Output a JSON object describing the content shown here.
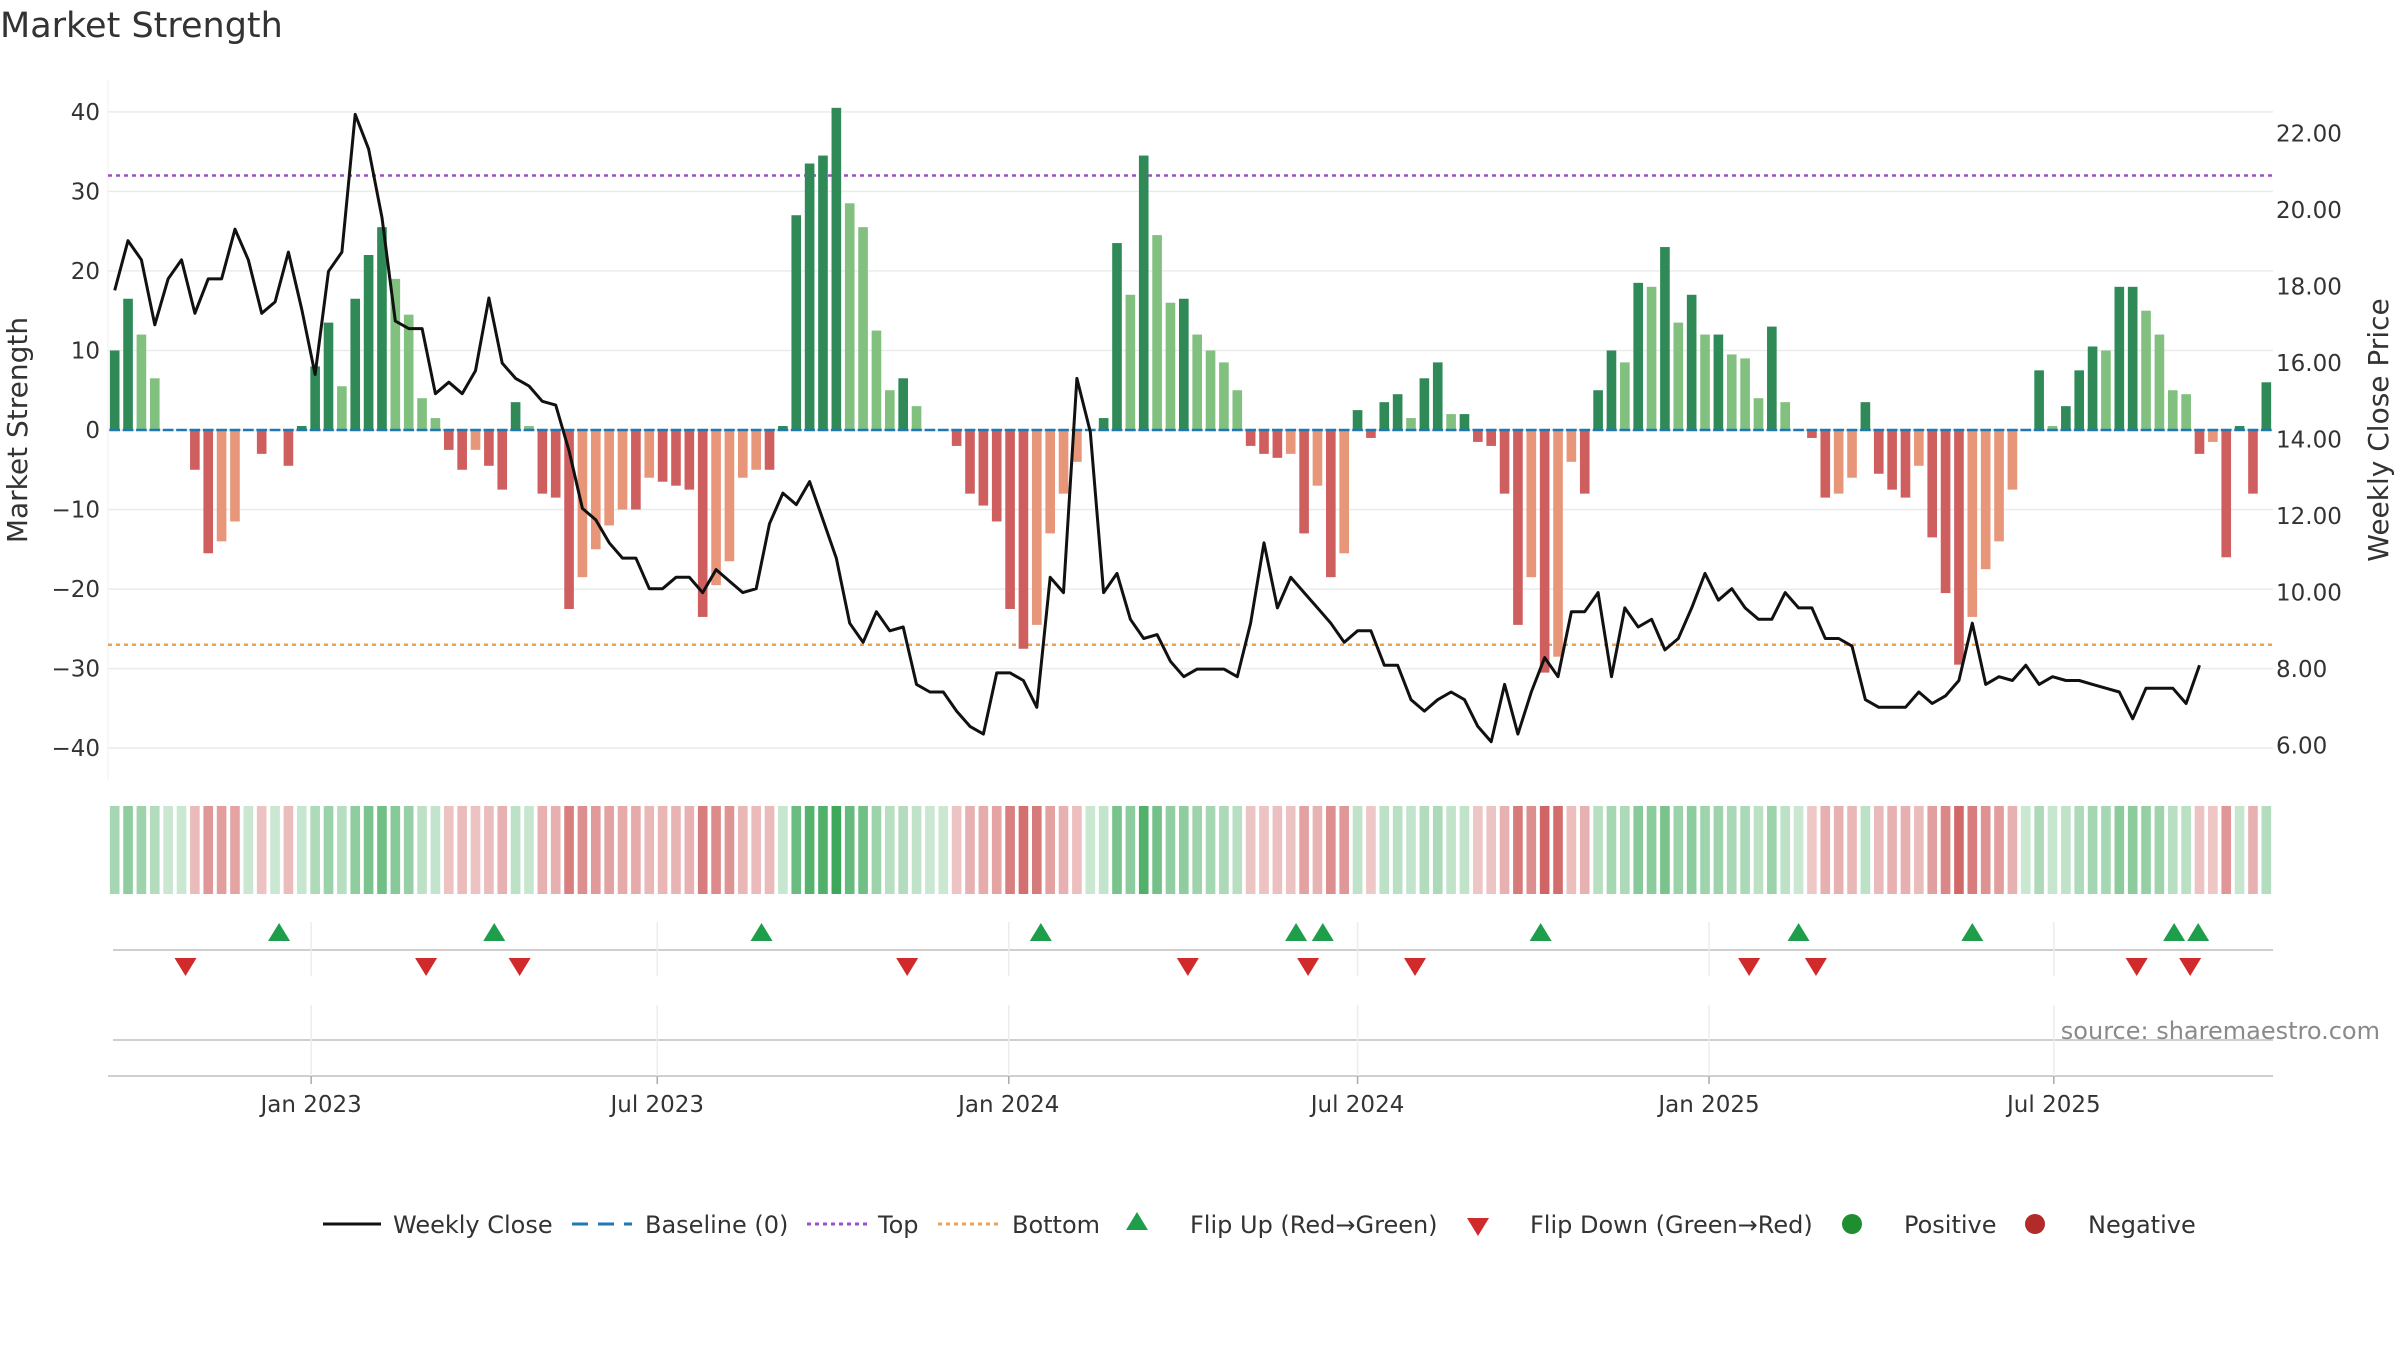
{
  "chart_data": {
    "type": "bar",
    "title": "Market Strength",
    "ylabel_left": "Market Strength",
    "ylabel_right": "Weekly Close Price",
    "source_note": "source: sharemaestro.com",
    "left_axis": {
      "range": [
        -44,
        44
      ],
      "ticks": [
        40,
        30,
        20,
        10,
        0,
        -10,
        -20,
        -30,
        -40
      ],
      "tick_labels": [
        "40",
        "30",
        "20",
        "10",
        "0",
        "−10",
        "−20",
        "−30",
        "−40"
      ]
    },
    "right_axis": {
      "range": [
        5.1,
        23.4
      ],
      "ticks": [
        22,
        20,
        18,
        16,
        14,
        12,
        10,
        8,
        6
      ],
      "tick_labels": [
        "22.00",
        "20.00",
        "18.00",
        "16.00",
        "14.00",
        "12.00",
        "10.00",
        "8.00",
        "6.00"
      ]
    },
    "x_axis": {
      "start_week": 0,
      "end_week": 157,
      "month_ticks": [
        {
          "label": "Jan 2023",
          "week": 14.7
        },
        {
          "label": "Jul 2023",
          "week": 40.6
        },
        {
          "label": "Jan 2024",
          "week": 66.9
        },
        {
          "label": "Jul 2024",
          "week": 93.0
        },
        {
          "label": "Jan 2025",
          "week": 119.3
        },
        {
          "label": "Jul 2025",
          "week": 145.1
        }
      ]
    },
    "thresholds": {
      "top": 32,
      "bottom": -27
    },
    "strength": [
      10,
      16.5,
      12,
      6.5,
      0,
      0,
      -5,
      -15.5,
      -14,
      -11.5,
      0,
      -3,
      0,
      -4.5,
      0.5,
      8,
      13.5,
      5.5,
      16.5,
      22,
      25.5,
      19,
      14.5,
      4,
      1.5,
      -2.5,
      -5,
      -2.5,
      -4.5,
      -7.5,
      3.5,
      0.5,
      -8,
      -8.5,
      -22.5,
      -18.5,
      -15,
      -12,
      -10,
      -10,
      -6,
      -6.5,
      -7,
      -7.5,
      -23.5,
      -19.5,
      -16.5,
      -6,
      -5,
      -5,
      0.5,
      27,
      33.5,
      34.5,
      40.5,
      28.5,
      25.5,
      12.5,
      5,
      6.5,
      3,
      0,
      0,
      -2,
      -8,
      -9.5,
      -11.5,
      -22.5,
      -27.5,
      -24.5,
      -13,
      -8,
      -4,
      0,
      1.5,
      23.5,
      17,
      34.5,
      24.5,
      16,
      16.5,
      12,
      10,
      8.5,
      5,
      -2,
      -3,
      -3.5,
      -3,
      -13,
      -7,
      -18.5,
      -15.5,
      2.5,
      -1,
      3.5,
      4.5,
      1.5,
      6.5,
      8.5,
      2,
      2,
      -1.5,
      -2,
      -8,
      -24.5,
      -18.5,
      -30.5,
      -28.5,
      -4,
      -8,
      5,
      10,
      8.5,
      18.5,
      18,
      23,
      13.5,
      17,
      12,
      12,
      9.5,
      9,
      4,
      13,
      3.5,
      0,
      -1,
      -8.5,
      -8,
      -6,
      3.5,
      -5.5,
      -7.5,
      -8.5,
      -4.5,
      -13.5,
      -20.5,
      -29.5,
      -23.5,
      -17.5,
      -14,
      -7.5,
      0,
      7.5,
      0.5,
      3,
      7.5,
      10.5,
      10,
      18,
      18,
      15,
      12,
      5,
      4.5,
      -3,
      -1.5,
      -16,
      0.5,
      -8,
      6
    ],
    "weekly_close": [
      17.9,
      19.2,
      18.7,
      17.0,
      18.2,
      18.7,
      17.3,
      18.2,
      18.2,
      19.5,
      18.7,
      17.3,
      17.6,
      18.9,
      17.4,
      15.7,
      18.4,
      18.9,
      22.5,
      21.6,
      19.8,
      17.1,
      16.9,
      16.9,
      15.2,
      15.5,
      15.2,
      15.8,
      17.7,
      16.0,
      15.6,
      15.4,
      15.0,
      14.9,
      13.7,
      12.2,
      11.9,
      11.3,
      10.9,
      10.9,
      10.1,
      10.1,
      10.4,
      10.4,
      10.0,
      10.6,
      10.3,
      10.0,
      10.1,
      11.8,
      12.6,
      12.3,
      12.9,
      11.9,
      10.9,
      9.2,
      8.7,
      9.5,
      9.0,
      9.1,
      7.6,
      7.4,
      7.4,
      6.9,
      6.5,
      6.3,
      7.9,
      7.9,
      7.7,
      7.0,
      10.4,
      10.0,
      15.6,
      14.2,
      10.0,
      10.5,
      9.3,
      8.8,
      8.9,
      8.2,
      7.8,
      8.0,
      8.0,
      8.0,
      7.8,
      9.2,
      11.3,
      9.6,
      10.4,
      10.0,
      9.6,
      9.2,
      8.7,
      9.0,
      9.0,
      8.1,
      8.1,
      7.2,
      6.9,
      7.2,
      7.4,
      7.2,
      6.5,
      6.1,
      7.6,
      6.3,
      7.4,
      8.3,
      7.8,
      9.5,
      9.5,
      10.0,
      7.8,
      9.6,
      9.1,
      9.3,
      8.5,
      8.8,
      9.6,
      10.5,
      9.8,
      10.1,
      9.6,
      9.3,
      9.3,
      10.0,
      9.6,
      9.6,
      8.8,
      8.8,
      8.6,
      7.2,
      7.0,
      7.0,
      7.0,
      7.4,
      7.1,
      7.3,
      7.7,
      9.2,
      7.6,
      7.8,
      7.7,
      8.1,
      7.6,
      7.8,
      7.7,
      7.7,
      7.6,
      7.5,
      7.4,
      6.7,
      7.5,
      7.5,
      7.5,
      7.1,
      8.1
    ],
    "flip_up_weeks": [
      12.3,
      28.4,
      48.4,
      69.3,
      88.4,
      90.4,
      106.7,
      126.0,
      139.0,
      154.1,
      155.9
    ],
    "flip_down_weeks": [
      5.3,
      23.3,
      30.3,
      59.3,
      80.3,
      89.3,
      97.3,
      122.3,
      127.3,
      151.3,
      155.3
    ],
    "band_note": "Lower strip shades each week by strength: green positive, red negative; intensity grows with magnitude.",
    "legend": [
      {
        "key": "weekly_close",
        "label": "Weekly Close",
        "symbol": "line",
        "color": "#111111"
      },
      {
        "key": "baseline",
        "label": "Baseline (0)",
        "symbol": "dash",
        "color": "#1f77b4"
      },
      {
        "key": "top",
        "label": "Top",
        "symbol": "dot",
        "color": "#9b4fc8"
      },
      {
        "key": "bottom",
        "label": "Bottom",
        "symbol": "dot",
        "color": "#f0a050"
      },
      {
        "key": "flip_up",
        "label": "Flip Up (Red→Green)",
        "symbol": "triangle-up",
        "color": "#1e9e4a"
      },
      {
        "key": "flip_down",
        "label": "Flip Down (Green→Red)",
        "symbol": "triangle-down",
        "color": "#d12a2a"
      },
      {
        "key": "positive",
        "label": "Positive",
        "symbol": "circle",
        "color": "#1e8e2e"
      },
      {
        "key": "negative",
        "label": "Negative",
        "symbol": "circle",
        "color": "#b22a2a"
      }
    ],
    "colors": {
      "pos_strong": "#2f8a58",
      "pos_weak": "#82c07f",
      "neg_strong": "#cf5f5f",
      "neg_weak": "#e8967a",
      "close_line": "#111111",
      "baseline": "#1f77b4",
      "top_line": "#9b4fc8",
      "bottom_line": "#f0a050",
      "grid": "#ebebeb"
    }
  }
}
